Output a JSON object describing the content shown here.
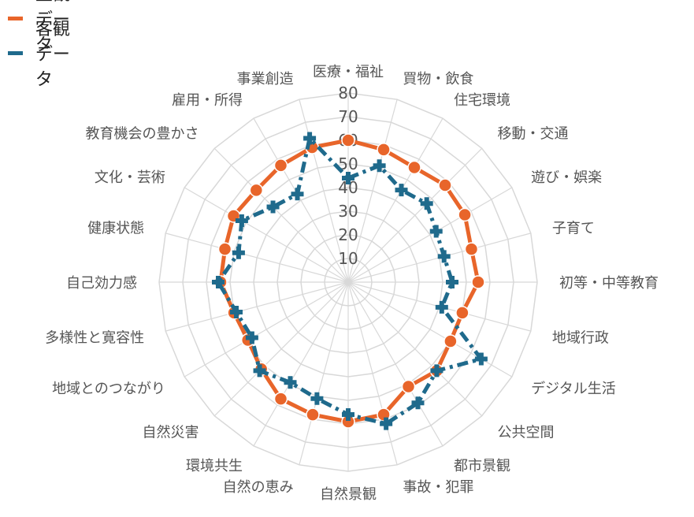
{
  "colors": {
    "subjective": "#E8652A",
    "objective": "#1F6A8C",
    "grid": "#d8d8d8"
  },
  "chart_data": {
    "type": "radar",
    "ylim": [
      0,
      80
    ],
    "ticks": [
      10,
      20,
      30,
      40,
      50,
      60,
      70,
      80
    ],
    "grid": true,
    "legend_position": "top-left",
    "categories": [
      "医療・福祉",
      "買物・飲食",
      "住宅環境",
      "移動・交通",
      "遊び・娯楽",
      "子育て",
      "初等・中等教育",
      "地域行政",
      "デジタル生活",
      "公共空間",
      "都市景観",
      "事故・犯罪",
      "自然景観",
      "自然の恵み",
      "環境共生",
      "自然災害",
      "地域とのつながり",
      "多様性と寛容性",
      "自己効力感",
      "健康状態",
      "文化・芸術",
      "教育機会の豊かさ",
      "雇用・所得",
      "事業創造"
    ],
    "series": [
      {
        "name": "主観データ",
        "key": "subjective",
        "values": [
          60,
          58,
          56,
          58,
          57,
          54,
          55,
          50,
          50,
          53,
          51,
          58,
          59,
          58,
          57,
          52,
          49,
          50,
          54,
          54,
          56,
          55,
          57,
          59
        ]
      },
      {
        "name": "客観データ",
        "key": "objective",
        "values": [
          44,
          51,
          45,
          47,
          43,
          42,
          44,
          41,
          65,
          53,
          59,
          62,
          56,
          51,
          49,
          53,
          47,
          49,
          55,
          48,
          52,
          45,
          43,
          63
        ]
      }
    ]
  }
}
